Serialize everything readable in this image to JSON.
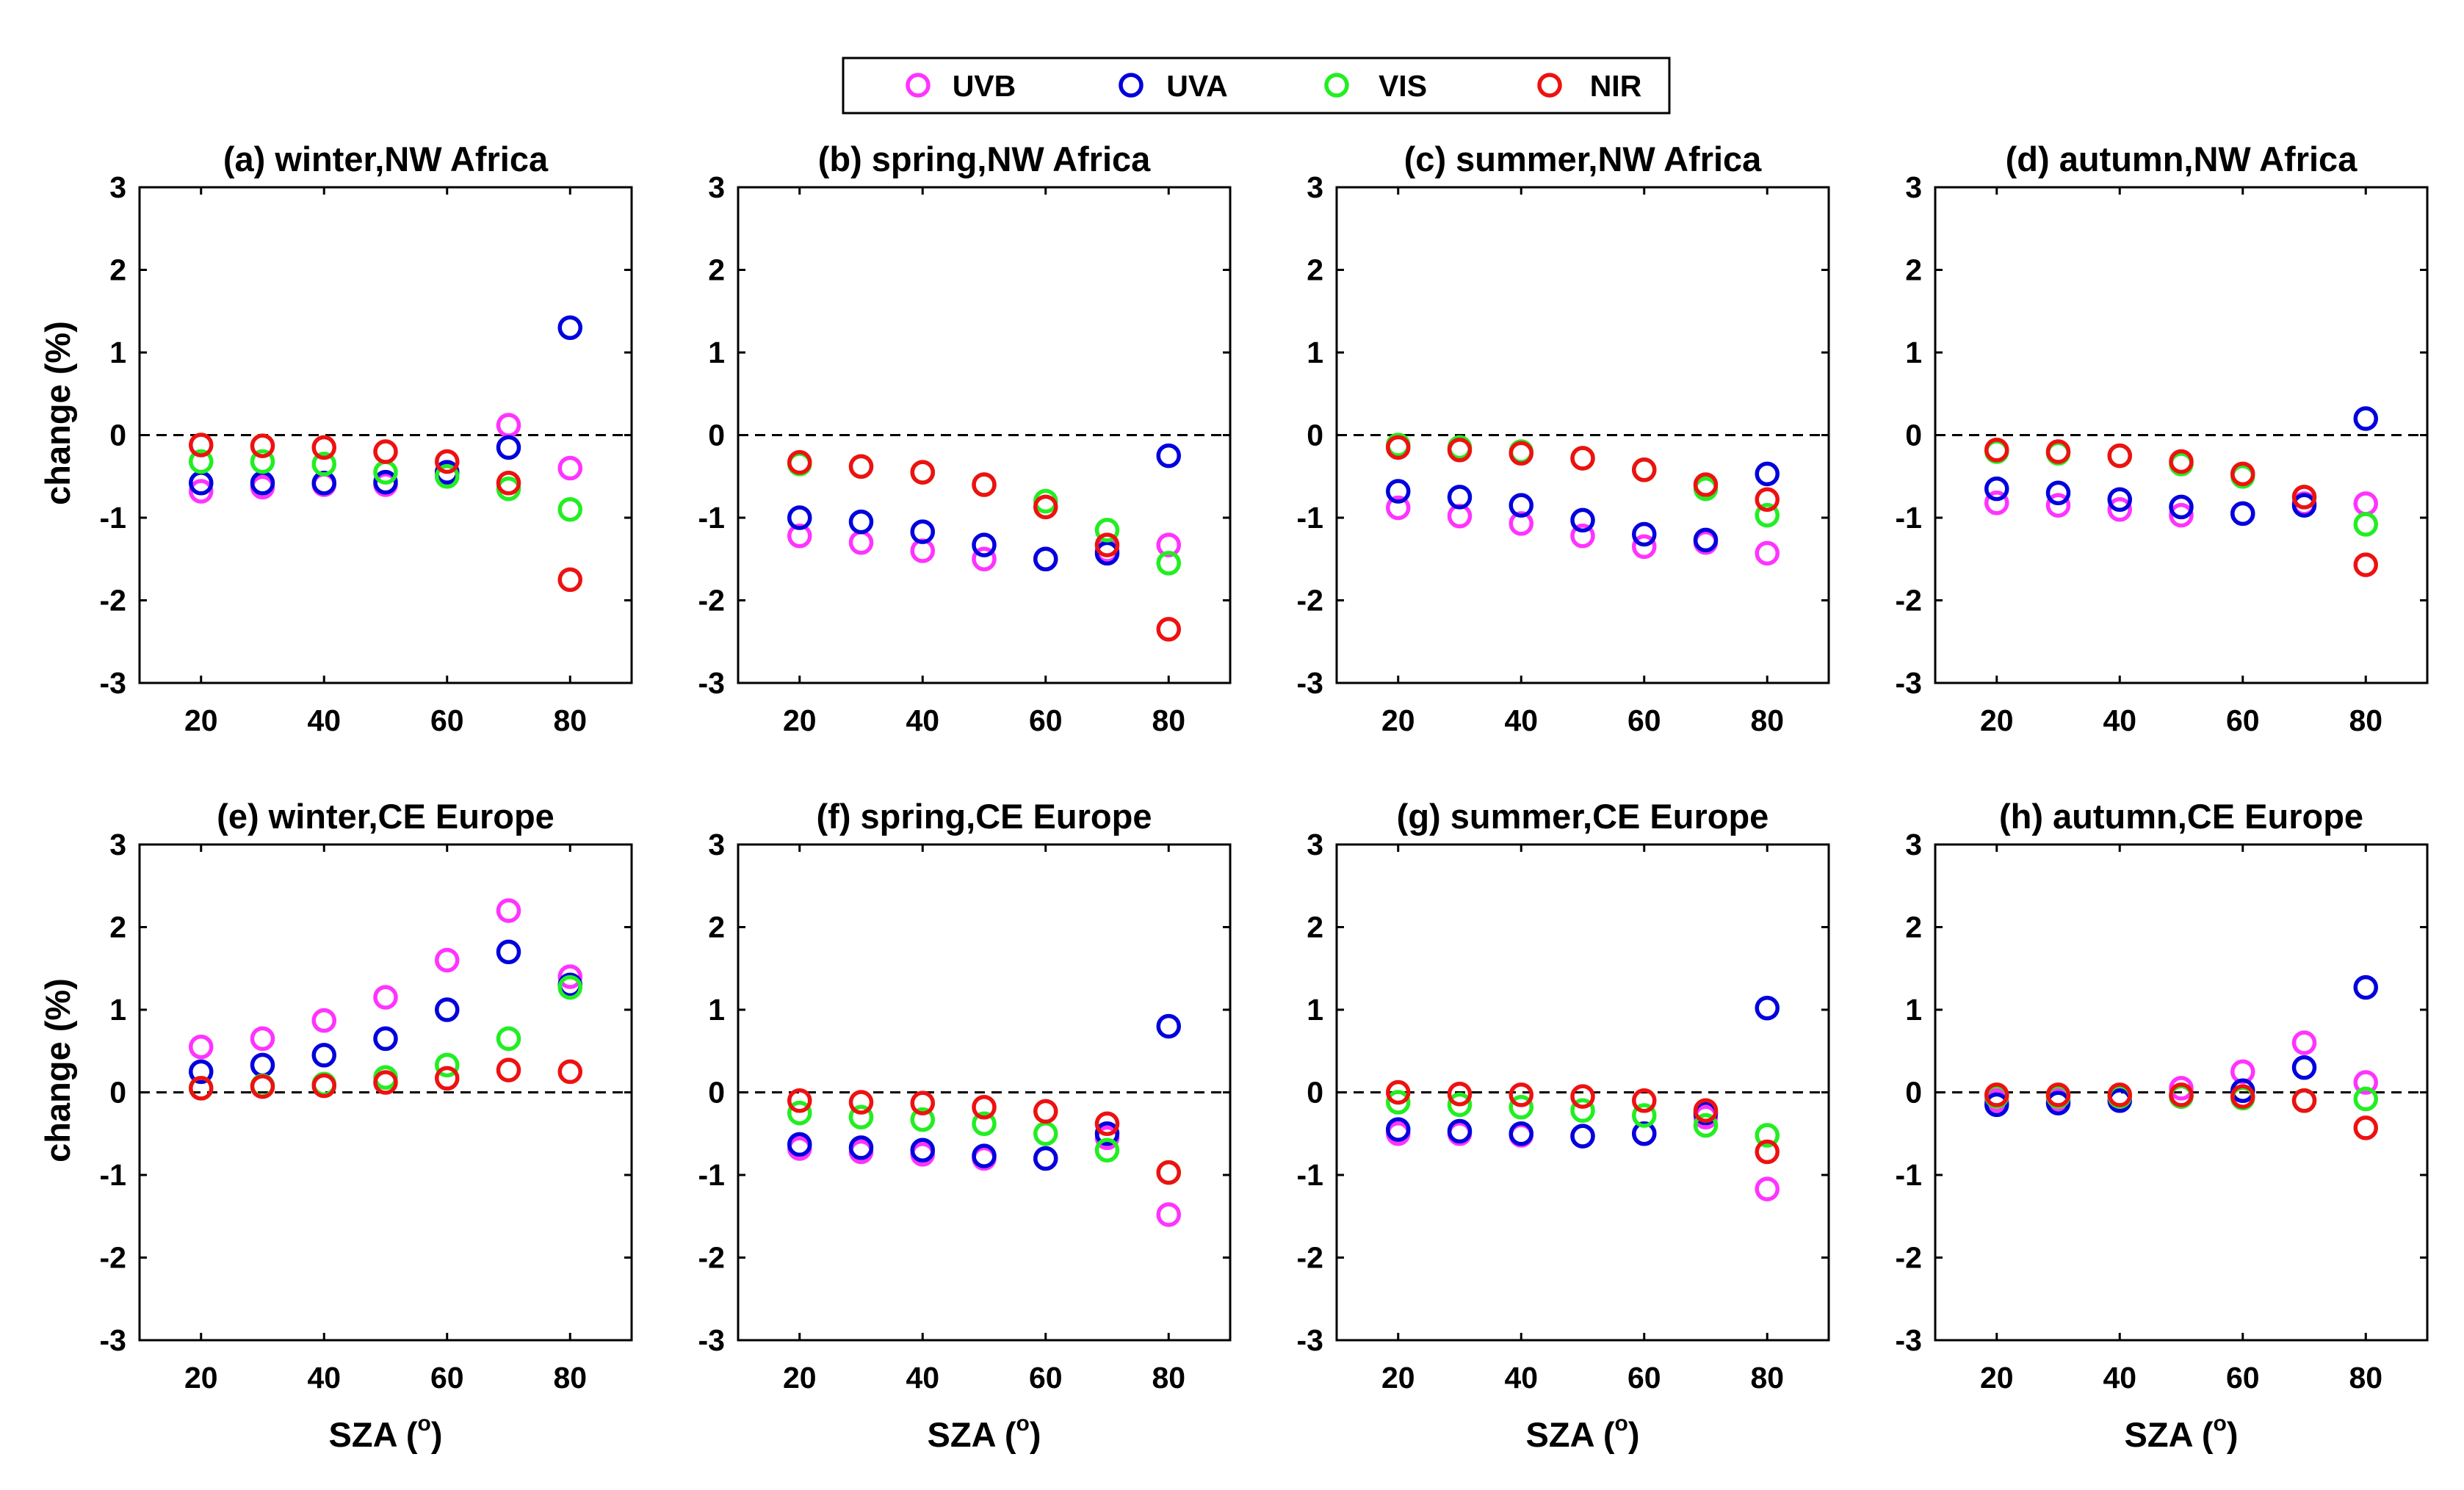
{
  "chart_data": {
    "type": "scatter",
    "legend": {
      "position": "top-center",
      "entries": [
        {
          "name": "UVB",
          "color": "#ff33ff"
        },
        {
          "name": "UVA",
          "color": "#0000dd"
        },
        {
          "name": "VIS",
          "color": "#22ee22"
        },
        {
          "name": "NIR",
          "color": "#ee1111"
        }
      ]
    },
    "xlabel_main": "SZA (",
    "xlabel_sup": "o",
    "xlabel_end": ")",
    "ylabel": "change (%)",
    "xlim": [
      10,
      90
    ],
    "ylim": [
      -3,
      3
    ],
    "xticks": [
      20,
      40,
      60,
      80
    ],
    "yticks": [
      3,
      2,
      1,
      0,
      -1,
      -2,
      -3
    ],
    "x": [
      20,
      30,
      40,
      50,
      60,
      70,
      80
    ],
    "series_order": [
      "UVB",
      "UVA",
      "VIS",
      "NIR"
    ],
    "panels": [
      {
        "title": "(a) winter,NW Africa",
        "series": {
          "UVB": [
            -0.68,
            -0.63,
            -0.6,
            -0.6,
            -0.45,
            0.12,
            -0.4
          ],
          "UVA": [
            -0.58,
            -0.58,
            -0.58,
            -0.57,
            -0.45,
            -0.15,
            1.3
          ],
          "VIS": [
            -0.32,
            -0.32,
            -0.35,
            -0.45,
            -0.5,
            -0.65,
            -0.9
          ],
          "NIR": [
            -0.12,
            -0.13,
            -0.15,
            -0.2,
            -0.32,
            -0.58,
            -1.75
          ]
        }
      },
      {
        "title": "(b) spring,NW Africa",
        "series": {
          "UVB": [
            -1.22,
            -1.3,
            -1.4,
            -1.5,
            -1.5,
            -1.4,
            -1.33
          ],
          "UVA": [
            -1.0,
            -1.05,
            -1.17,
            -1.33,
            -1.5,
            -1.43,
            -0.25
          ],
          "VIS": [
            -0.35,
            -0.38,
            -0.45,
            -0.6,
            -0.8,
            -1.15,
            -1.55
          ],
          "NIR": [
            -0.33,
            -0.38,
            -0.45,
            -0.6,
            -0.87,
            -1.33,
            -2.35
          ]
        }
      },
      {
        "title": "(c) summer,NW Africa",
        "series": {
          "UVB": [
            -0.88,
            -0.98,
            -1.07,
            -1.22,
            -1.35,
            -1.3,
            -1.43
          ],
          "UVA": [
            -0.68,
            -0.75,
            -0.85,
            -1.03,
            -1.2,
            -1.27,
            -0.47
          ],
          "VIS": [
            -0.12,
            -0.15,
            -0.2,
            -0.28,
            -0.42,
            -0.65,
            -0.97
          ],
          "NIR": [
            -0.15,
            -0.18,
            -0.22,
            -0.28,
            -0.42,
            -0.6,
            -0.78
          ]
        }
      },
      {
        "title": "(d) autumn,NW Africa",
        "series": {
          "UVB": [
            -0.82,
            -0.85,
            -0.9,
            -0.97,
            -0.95,
            -0.83,
            -0.83
          ],
          "UVA": [
            -0.65,
            -0.7,
            -0.78,
            -0.87,
            -0.95,
            -0.85,
            0.2
          ],
          "VIS": [
            -0.2,
            -0.22,
            -0.25,
            -0.35,
            -0.5,
            -0.75,
            -1.08
          ],
          "NIR": [
            -0.18,
            -0.2,
            -0.25,
            -0.32,
            -0.47,
            -0.75,
            -1.57
          ]
        }
      },
      {
        "title": "(e) winter,CE Europe",
        "series": {
          "UVB": [
            0.55,
            0.65,
            0.87,
            1.15,
            1.6,
            2.2,
            1.4
          ],
          "UVA": [
            0.25,
            0.33,
            0.45,
            0.65,
            1.0,
            1.7,
            1.3
          ],
          "VIS": [
            0.05,
            0.08,
            0.1,
            0.18,
            0.33,
            0.65,
            1.27
          ],
          "NIR": [
            0.05,
            0.07,
            0.08,
            0.12,
            0.17,
            0.27,
            0.25
          ]
        }
      },
      {
        "title": "(f) spring,CE Europe",
        "series": {
          "UVB": [
            -0.68,
            -0.72,
            -0.75,
            -0.8,
            -0.8,
            -0.55,
            -1.48
          ],
          "UVA": [
            -0.63,
            -0.67,
            -0.7,
            -0.77,
            -0.8,
            -0.5,
            0.8
          ],
          "VIS": [
            -0.25,
            -0.3,
            -0.33,
            -0.38,
            -0.5,
            -0.7,
            -0.97
          ],
          "NIR": [
            -0.1,
            -0.12,
            -0.13,
            -0.18,
            -0.23,
            -0.38,
            -0.97
          ]
        }
      },
      {
        "title": "(g) summer,CE Europe",
        "series": {
          "UVB": [
            -0.5,
            -0.5,
            -0.52,
            -0.53,
            -0.5,
            -0.3,
            -1.17
          ],
          "UVA": [
            -0.45,
            -0.47,
            -0.5,
            -0.53,
            -0.5,
            -0.25,
            1.02
          ],
          "VIS": [
            -0.12,
            -0.15,
            -0.18,
            -0.22,
            -0.28,
            -0.4,
            -0.52
          ],
          "NIR": [
            0.0,
            -0.02,
            -0.03,
            -0.05,
            -0.1,
            -0.22,
            -0.72
          ]
        }
      },
      {
        "title": "(h) autumn,CE Europe",
        "series": {
          "UVB": [
            -0.1,
            -0.08,
            -0.05,
            0.05,
            0.25,
            0.6,
            0.12
          ],
          "UVA": [
            -0.15,
            -0.13,
            -0.1,
            -0.05,
            0.02,
            0.3,
            1.27
          ],
          "VIS": [
            -0.05,
            -0.05,
            -0.05,
            -0.05,
            -0.07,
            -0.1,
            -0.08
          ],
          "NIR": [
            -0.03,
            -0.03,
            -0.03,
            -0.03,
            -0.05,
            -0.1,
            -0.43
          ]
        }
      }
    ]
  }
}
